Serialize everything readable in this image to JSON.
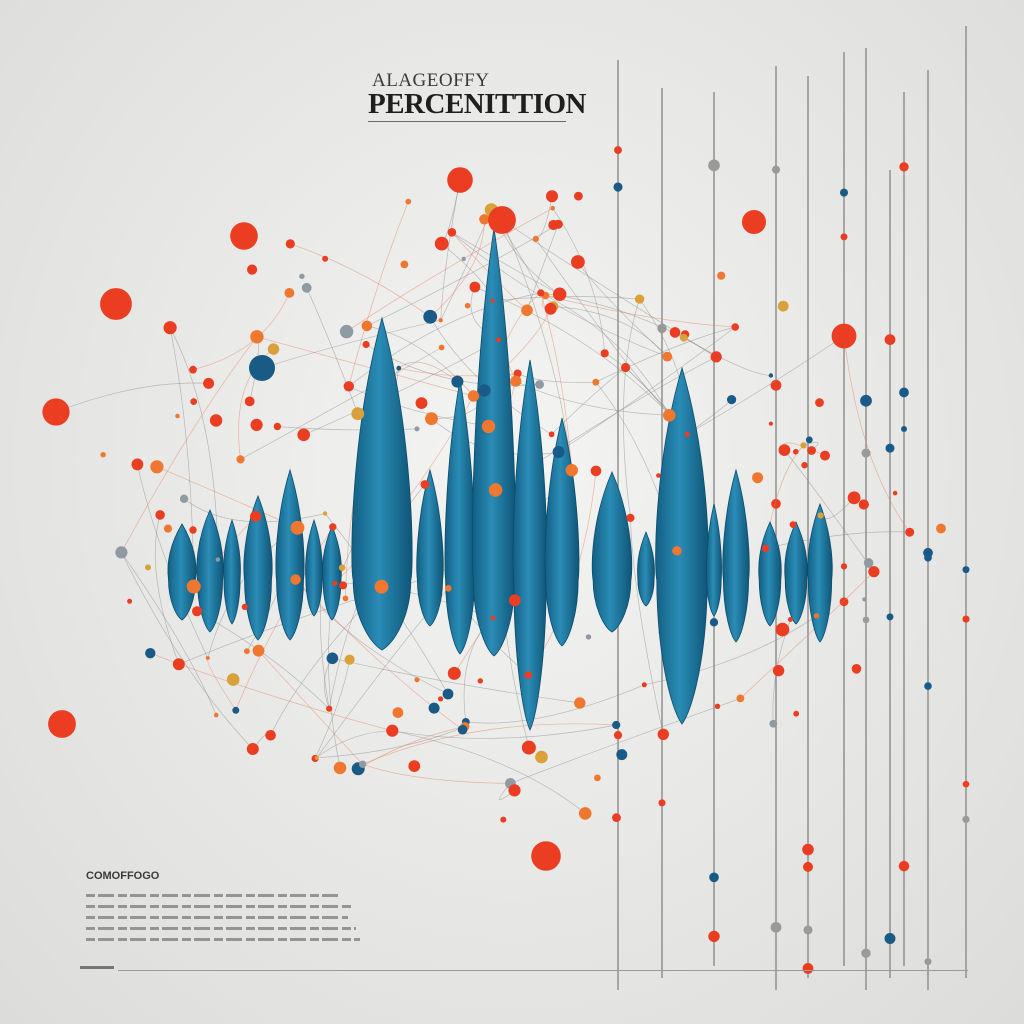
{
  "poster": {
    "kicker": "ALAGEOFFY",
    "title": "PERCENITTION",
    "caption_heading": "COMOFFOGO"
  },
  "icons": [
    "network-node-icon",
    "waveform-icon"
  ],
  "colors": {
    "background": "#e6e6e4",
    "wave_blue": "#1f7fa6",
    "node_red": "#ea3d22",
    "node_orange": "#f0772f",
    "node_navy": "#1a5a86",
    "line_gray": "#8e8e8e"
  }
}
